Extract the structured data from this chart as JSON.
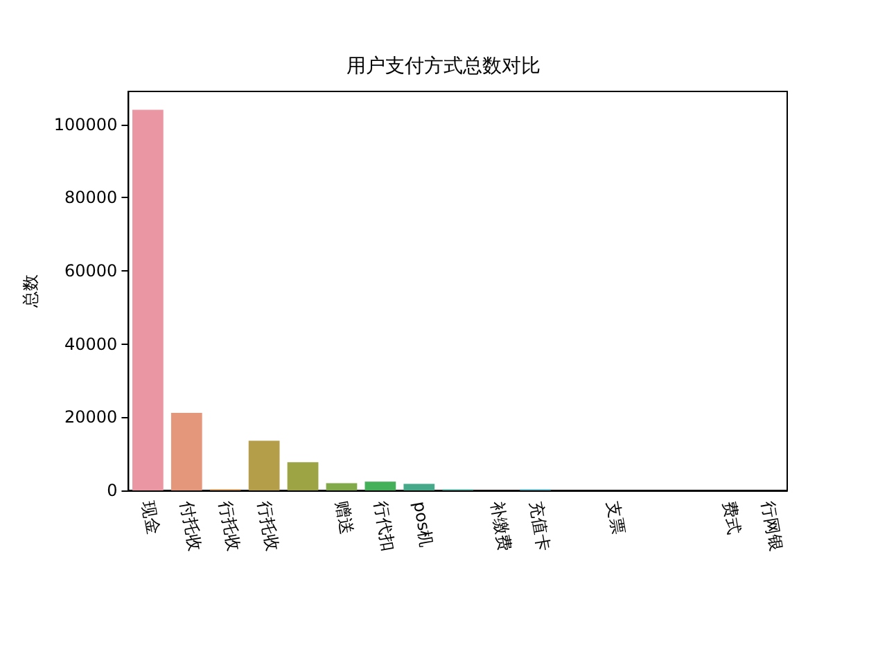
{
  "chart_data": {
    "type": "bar",
    "title": "用户支付方式总数对比",
    "ylabel": "总数",
    "categories": [
      "现金",
      "付托收",
      "行托收",
      "行托收",
      null,
      "赠送",
      "行代扣",
      "pos机",
      null,
      "补缴费",
      "充值卡",
      null,
      "支票",
      null,
      null,
      "费式",
      "行网银"
    ],
    "values": [
      104000,
      21200,
      300,
      13600,
      7700,
      2000,
      2400,
      1800,
      300,
      0,
      300,
      0,
      0,
      0,
      0,
      0,
      0
    ],
    "colors": [
      "#ea96a3",
      "#e5977c",
      "#c8823a",
      "#b59e4a",
      "#9ca443",
      "#82a94a",
      "#44b059",
      "#45a98a",
      "#43aa99",
      "#3fa7a7",
      "#3ea5bb",
      "#4ea0cf",
      "#8a9fde",
      "#b093e2",
      "#d586de",
      "#e38cc4",
      "#e891b0"
    ],
    "ylim": [
      0,
      109000
    ],
    "yticks": [
      0,
      20000,
      40000,
      60000,
      80000,
      100000
    ],
    "grid": false
  }
}
